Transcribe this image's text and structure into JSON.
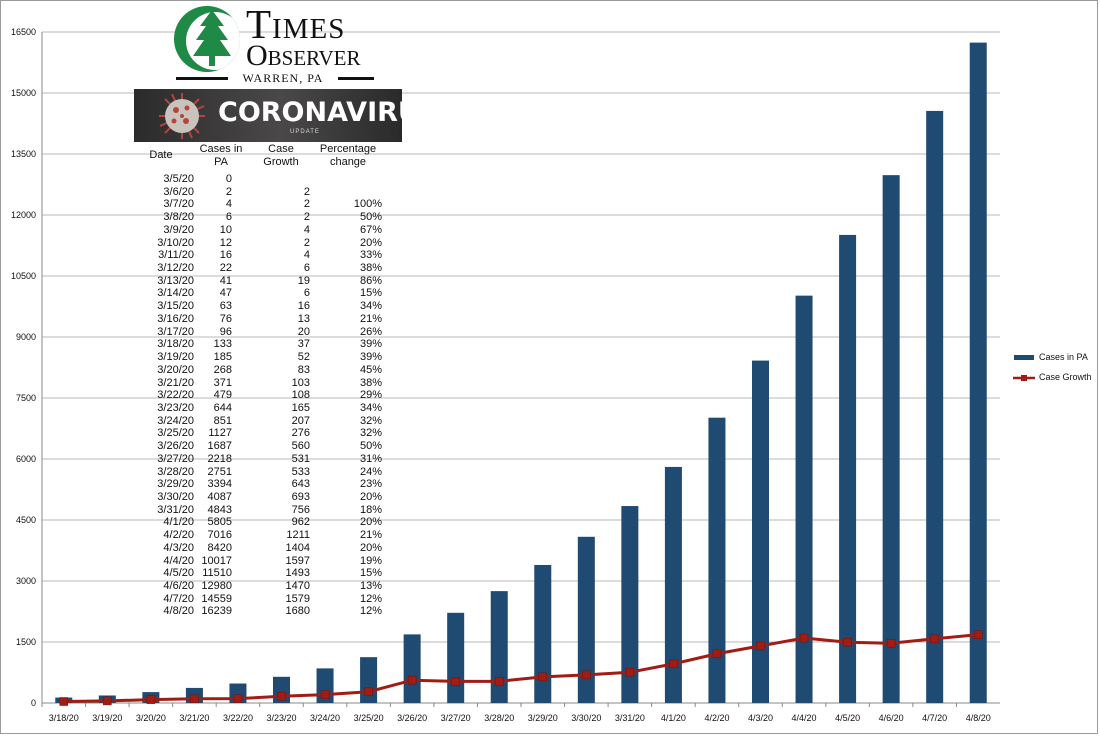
{
  "logo": {
    "name_line1": "Times",
    "name_line2": "Observer",
    "location": "WARREN, PA"
  },
  "banner": {
    "title": "CORONAVIRUS",
    "subtitle": "UPDATE"
  },
  "table": {
    "headers": {
      "date": "Date",
      "cases": "Cases in\nPA",
      "growth": "Case\nGrowth",
      "pct": "Percentage\nchange"
    },
    "rows": [
      [
        "3/5/20",
        "0",
        "",
        ""
      ],
      [
        "3/6/20",
        "2",
        "2",
        ""
      ],
      [
        "3/7/20",
        "4",
        "2",
        "100%"
      ],
      [
        "3/8/20",
        "6",
        "2",
        "50%"
      ],
      [
        "3/9/20",
        "10",
        "4",
        "67%"
      ],
      [
        "3/10/20",
        "12",
        "2",
        "20%"
      ],
      [
        "3/11/20",
        "16",
        "4",
        "33%"
      ],
      [
        "3/12/20",
        "22",
        "6",
        "38%"
      ],
      [
        "3/13/20",
        "41",
        "19",
        "86%"
      ],
      [
        "3/14/20",
        "47",
        "6",
        "15%"
      ],
      [
        "3/15/20",
        "63",
        "16",
        "34%"
      ],
      [
        "3/16/20",
        "76",
        "13",
        "21%"
      ],
      [
        "3/17/20",
        "96",
        "20",
        "26%"
      ],
      [
        "3/18/20",
        "133",
        "37",
        "39%"
      ],
      [
        "3/19/20",
        "185",
        "52",
        "39%"
      ],
      [
        "3/20/20",
        "268",
        "83",
        "45%"
      ],
      [
        "3/21/20",
        "371",
        "103",
        "38%"
      ],
      [
        "3/22/20",
        "479",
        "108",
        "29%"
      ],
      [
        "3/23/20",
        "644",
        "165",
        "34%"
      ],
      [
        "3/24/20",
        "851",
        "207",
        "32%"
      ],
      [
        "3/25/20",
        "1127",
        "276",
        "32%"
      ],
      [
        "3/26/20",
        "1687",
        "560",
        "50%"
      ],
      [
        "3/27/20",
        "2218",
        "531",
        "31%"
      ],
      [
        "3/28/20",
        "2751",
        "533",
        "24%"
      ],
      [
        "3/29/20",
        "3394",
        "643",
        "23%"
      ],
      [
        "3/30/20",
        "4087",
        "693",
        "20%"
      ],
      [
        "3/31/20",
        "4843",
        "756",
        "18%"
      ],
      [
        "4/1/20",
        "5805",
        "962",
        "20%"
      ],
      [
        "4/2/20",
        "7016",
        "1211",
        "21%"
      ],
      [
        "4/3/20",
        "8420",
        "1404",
        "20%"
      ],
      [
        "4/4/20",
        "10017",
        "1597",
        "19%"
      ],
      [
        "4/5/20",
        "11510",
        "1493",
        "15%"
      ],
      [
        "4/6/20",
        "12980",
        "1470",
        "13%"
      ],
      [
        "4/7/20",
        "14559",
        "1579",
        "12%"
      ],
      [
        "4/8/20",
        "16239",
        "1680",
        "12%"
      ]
    ]
  },
  "chart_data": {
    "type": "bar",
    "categories": [
      "3/18/20",
      "3/19/20",
      "3/20/20",
      "3/21/20",
      "3/22/20",
      "3/23/20",
      "3/24/20",
      "3/25/20",
      "3/26/20",
      "3/27/20",
      "3/28/20",
      "3/29/20",
      "3/30/20",
      "3/31/20",
      "4/1/20",
      "4/2/20",
      "4/3/20",
      "4/4/20",
      "4/5/20",
      "4/6/20",
      "4/7/20",
      "4/8/20"
    ],
    "series": [
      {
        "name": "Cases in PA",
        "type": "bar",
        "color": "#1f4a72",
        "values": [
          133,
          185,
          268,
          371,
          479,
          644,
          851,
          1127,
          1687,
          2218,
          2751,
          3394,
          4087,
          4843,
          5805,
          7016,
          8420,
          10017,
          11510,
          12980,
          14559,
          16239
        ]
      },
      {
        "name": "Case Growth",
        "type": "line",
        "color": "#a01c14",
        "values": [
          37,
          52,
          83,
          103,
          108,
          165,
          207,
          276,
          560,
          531,
          533,
          643,
          693,
          756,
          962,
          1211,
          1404,
          1597,
          1493,
          1470,
          1579,
          1680
        ]
      }
    ],
    "ylim": [
      0,
      16500
    ],
    "yticks": [
      0,
      1500,
      3000,
      4500,
      6000,
      7500,
      9000,
      10500,
      12000,
      13500,
      15000,
      16500
    ],
    "grid": true,
    "legend": "right"
  }
}
